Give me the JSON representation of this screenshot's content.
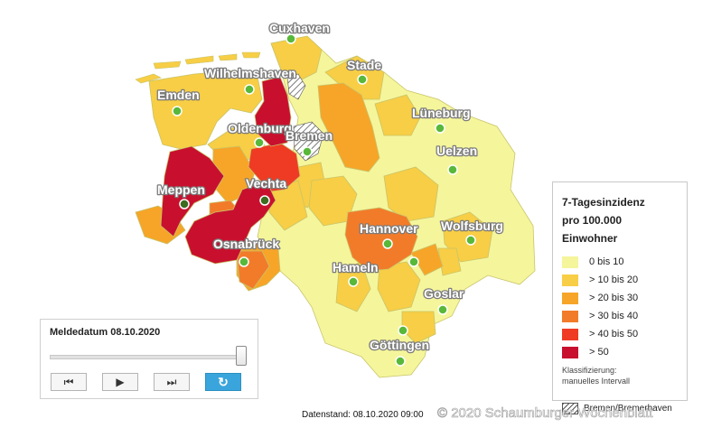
{
  "map": {
    "cities": [
      {
        "name": "Cuxhaven"
      },
      {
        "name": "Wilhelmshaven"
      },
      {
        "name": "Stade"
      },
      {
        "name": "Emden"
      },
      {
        "name": "Lüneburg"
      },
      {
        "name": "Oldenburg"
      },
      {
        "name": "Bremen"
      },
      {
        "name": "Uelzen"
      },
      {
        "name": "Meppen"
      },
      {
        "name": "Vechta"
      },
      {
        "name": "Hannover"
      },
      {
        "name": "Wolfsburg"
      },
      {
        "name": "Osnabrück"
      },
      {
        "name": "Hameln"
      },
      {
        "name": "Goslar"
      },
      {
        "name": "Göttingen"
      }
    ]
  },
  "legend": {
    "title_line1": "7-Tagesinzidenz",
    "title_line2": "pro 100.000 Einwohner",
    "items": [
      {
        "label": "0 bis 10",
        "color": "#f5f59c"
      },
      {
        "label": "> 10 bis 20",
        "color": "#f7ce45"
      },
      {
        "label": "> 20 bis 30",
        "color": "#f6a528"
      },
      {
        "label": "> 30 bis 40",
        "color": "#f27b2a"
      },
      {
        "label": "> 40 bis 50",
        "color": "#ef3b23"
      },
      {
        "label": "> 50",
        "color": "#c8102e"
      }
    ],
    "note_line1": "Klassifizierung:",
    "note_line2": "manuelles Intervall",
    "hatch_label": "Bremen/Bremerhaven"
  },
  "player": {
    "date_label": "Meldedatum 08.10.2020",
    "slider_position": 1.0,
    "buttons": {
      "first_icon": "skip-back-icon",
      "play_icon": "play-icon",
      "last_icon": "skip-forward-icon",
      "reload_icon": "reload-icon"
    }
  },
  "footer": {
    "datenstand": "Datenstand: 08.10.2020 09:00",
    "watermark": "© 2020 Schaumburger Wochenblatt"
  }
}
